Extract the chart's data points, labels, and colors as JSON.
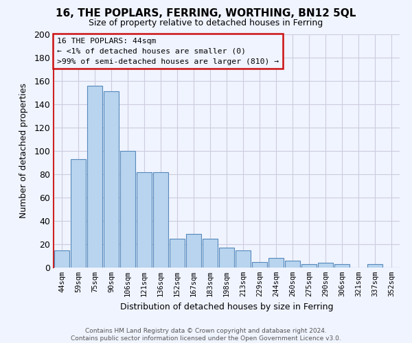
{
  "title1": "16, THE POPLARS, FERRING, WORTHING, BN12 5QL",
  "title2": "Size of property relative to detached houses in Ferring",
  "xlabel": "Distribution of detached houses by size in Ferring",
  "ylabel": "Number of detached properties",
  "categories": [
    "44sqm",
    "59sqm",
    "75sqm",
    "90sqm",
    "106sqm",
    "121sqm",
    "136sqm",
    "152sqm",
    "167sqm",
    "183sqm",
    "198sqm",
    "213sqm",
    "229sqm",
    "244sqm",
    "260sqm",
    "275sqm",
    "290sqm",
    "306sqm",
    "321sqm",
    "337sqm",
    "352sqm"
  ],
  "values": [
    15,
    93,
    156,
    151,
    100,
    82,
    82,
    25,
    29,
    25,
    17,
    15,
    5,
    8,
    6,
    3,
    4,
    3,
    0,
    3,
    0
  ],
  "bar_color": "#b8d4ee",
  "bar_edge_color": "#5588bb",
  "left_spine_color": "#cc2222",
  "ylim": [
    0,
    200
  ],
  "yticks": [
    0,
    20,
    40,
    60,
    80,
    100,
    120,
    140,
    160,
    180,
    200
  ],
  "annotation_title": "16 THE POPLARS: 44sqm",
  "annotation_line1": "← <1% of detached houses are smaller (0)",
  "annotation_line2": ">99% of semi-detached houses are larger (810) →",
  "ann_border_color": "#cc1111",
  "footer1": "Contains HM Land Registry data © Crown copyright and database right 2024.",
  "footer2": "Contains public sector information licensed under the Open Government Licence v3.0.",
  "background_color": "#f0f4ff",
  "grid_color": "#ccccdd"
}
